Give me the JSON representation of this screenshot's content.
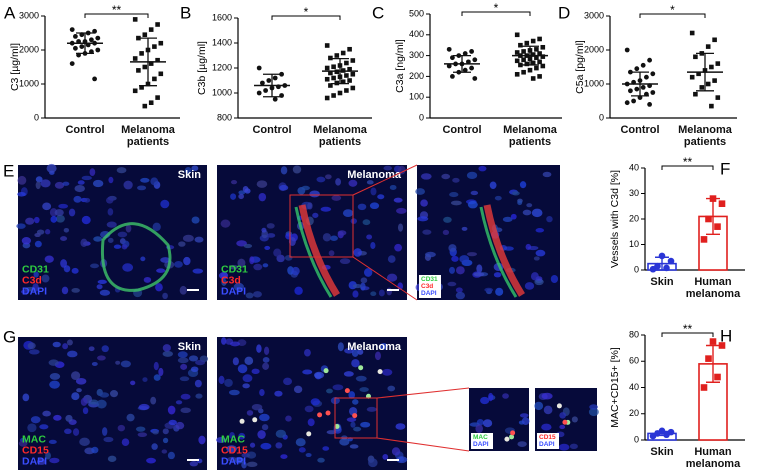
{
  "chart_data": [
    {
      "type": "dotplot",
      "panel": "A",
      "ylabel": "C3 [µg/ml]",
      "ylim": [
        0,
        3000
      ],
      "yticks": [
        0,
        1000,
        2000,
        3000
      ],
      "significance": "**",
      "categories": [
        "Control",
        "Melanoma patients"
      ],
      "groups": [
        {
          "values": [
            2600,
            2550,
            2500,
            2450,
            2400,
            2350,
            2300,
            2250,
            2250,
            2200,
            2200,
            2150,
            2100,
            2050,
            2000,
            1950,
            1900,
            1850,
            1600,
            1150
          ],
          "mean": 2200,
          "sd": 300
        },
        {
          "values": [
            2900,
            2750,
            2600,
            2450,
            2350,
            2200,
            2100,
            2000,
            1900,
            1750,
            1700,
            1600,
            1500,
            1400,
            1300,
            1150,
            1000,
            900,
            800,
            600,
            450,
            350
          ],
          "mean": 1650,
          "sd": 700
        }
      ]
    },
    {
      "type": "dotplot",
      "panel": "B",
      "ylabel": "C3b [µg/ml]",
      "ylim": [
        800,
        1600
      ],
      "yticks": [
        800,
        1000,
        1200,
        1400,
        1600
      ],
      "significance": "*",
      "categories": [
        "Control",
        "Melanoma patients"
      ],
      "groups": [
        {
          "values": [
            1200,
            1150,
            1120,
            1100,
            1080,
            1060,
            1050,
            1040,
            1020,
            1000,
            980,
            950
          ],
          "mean": 1060,
          "sd": 90
        },
        {
          "values": [
            1380,
            1350,
            1320,
            1300,
            1280,
            1260,
            1240,
            1220,
            1210,
            1200,
            1190,
            1180,
            1170,
            1160,
            1150,
            1140,
            1130,
            1120,
            1110,
            1100,
            1090,
            1080,
            1060,
            1040,
            1020,
            1000,
            980,
            960
          ],
          "mean": 1175,
          "sd": 100
        }
      ]
    },
    {
      "type": "dotplot",
      "panel": "C",
      "ylabel": "C3a [ng/ml]",
      "ylim": [
        0,
        500
      ],
      "yticks": [
        0,
        100,
        200,
        300,
        400,
        500
      ],
      "significance": "*",
      "categories": [
        "Control",
        "Melanoma patients"
      ],
      "groups": [
        {
          "values": [
            330,
            320,
            310,
            300,
            290,
            280,
            270,
            260,
            260,
            250,
            240,
            230,
            220,
            200,
            190
          ],
          "mean": 260,
          "sd": 40
        },
        {
          "values": [
            400,
            380,
            370,
            360,
            350,
            340,
            330,
            325,
            320,
            315,
            310,
            305,
            300,
            300,
            295,
            290,
            285,
            280,
            275,
            270,
            265,
            260,
            255,
            250,
            240,
            230,
            220,
            210,
            200,
            190
          ],
          "mean": 300,
          "sd": 45
        }
      ]
    },
    {
      "type": "dotplot",
      "panel": "D",
      "ylabel": "C5a [pg/ml]",
      "ylim": [
        0,
        3000
      ],
      "yticks": [
        0,
        1000,
        2000,
        3000
      ],
      "significance": "*",
      "categories": [
        "Control",
        "Melanoma patients"
      ],
      "groups": [
        {
          "values": [
            2000,
            1700,
            1550,
            1450,
            1350,
            1300,
            1200,
            1100,
            1050,
            1000,
            950,
            900,
            850,
            800,
            750,
            700,
            600,
            500,
            450,
            400
          ],
          "mean": 1000,
          "sd": 350
        },
        {
          "values": [
            2500,
            2300,
            2100,
            1900,
            1800,
            1600,
            1500,
            1400,
            1300,
            1200,
            1100,
            1000,
            900,
            700,
            600,
            350
          ],
          "mean": 1350,
          "sd": 550
        }
      ]
    },
    {
      "type": "bar",
      "panel": "F",
      "ylabel": "Vessels with C3d [%]",
      "ylim": [
        0,
        40
      ],
      "yticks": [
        0,
        10,
        20,
        30,
        40
      ],
      "significance": "**",
      "categories": [
        "Skin",
        "Human melanoma"
      ],
      "groups": [
        {
          "color": "#2a35d6",
          "values": [
            0.3,
            0.8,
            1.5,
            3.5,
            5.5
          ],
          "mean": 2.5,
          "sd": 2.5
        },
        {
          "color": "#e0201e",
          "values": [
            12,
            17,
            20,
            26,
            28
          ],
          "mean": 21,
          "sd": 7
        }
      ]
    },
    {
      "type": "bar",
      "panel": "H",
      "ylabel": "MAC+CD15+ [%]",
      "ylim": [
        0,
        80
      ],
      "yticks": [
        0,
        20,
        40,
        60,
        80
      ],
      "significance": "**",
      "categories": [
        "Skin",
        "Human melanoma"
      ],
      "groups": [
        {
          "color": "#2a35d6",
          "values": [
            3,
            4,
            5,
            6,
            7
          ],
          "mean": 5,
          "sd": 1.5
        },
        {
          "color": "#e0201e",
          "values": [
            40,
            48,
            62,
            72,
            75
          ],
          "mean": 58,
          "sd": 14
        }
      ]
    }
  ],
  "image_panels": [
    {
      "panel": "E",
      "images": [
        {
          "title": "Skin",
          "stains": [
            {
              "text": "CD31",
              "color": "#2ecc40"
            },
            {
              "text": "C3d",
              "color": "#ff2a2a"
            },
            {
              "text": "DAPI",
              "color": "#3a4dff"
            }
          ]
        },
        {
          "title": "Melanoma",
          "stains": [
            {
              "text": "CD31",
              "color": "#2ecc40"
            },
            {
              "text": "C3d",
              "color": "#ff2a2a"
            },
            {
              "text": "DAPI",
              "color": "#3a4dff"
            }
          ]
        },
        {
          "stains": [
            {
              "text": "CD31",
              "color": "#2ecc40"
            },
            {
              "text": "C3d",
              "color": "#ff2a2a"
            },
            {
              "text": "DAPI",
              "color": "#3a4dff"
            }
          ]
        }
      ]
    },
    {
      "panel": "G",
      "images": [
        {
          "title": "Skin",
          "stains": [
            {
              "text": "MAC",
              "color": "#2ecc40"
            },
            {
              "text": "CD15",
              "color": "#ff2a2a"
            },
            {
              "text": "DAPI",
              "color": "#3a4dff"
            }
          ]
        },
        {
          "title": "Melanoma",
          "stains": [
            {
              "text": "MAC",
              "color": "#2ecc40"
            },
            {
              "text": "CD15",
              "color": "#ff2a2a"
            },
            {
              "text": "DAPI",
              "color": "#3a4dff"
            }
          ]
        },
        {
          "stains": [
            {
              "text": "MAC",
              "color": "#2ecc40"
            },
            {
              "text": "DAPI",
              "color": "#3a4dff"
            }
          ]
        },
        {
          "stains": [
            {
              "text": "CD15",
              "color": "#ff2a2a"
            },
            {
              "text": "DAPI",
              "color": "#3a4dff"
            }
          ]
        }
      ]
    }
  ]
}
